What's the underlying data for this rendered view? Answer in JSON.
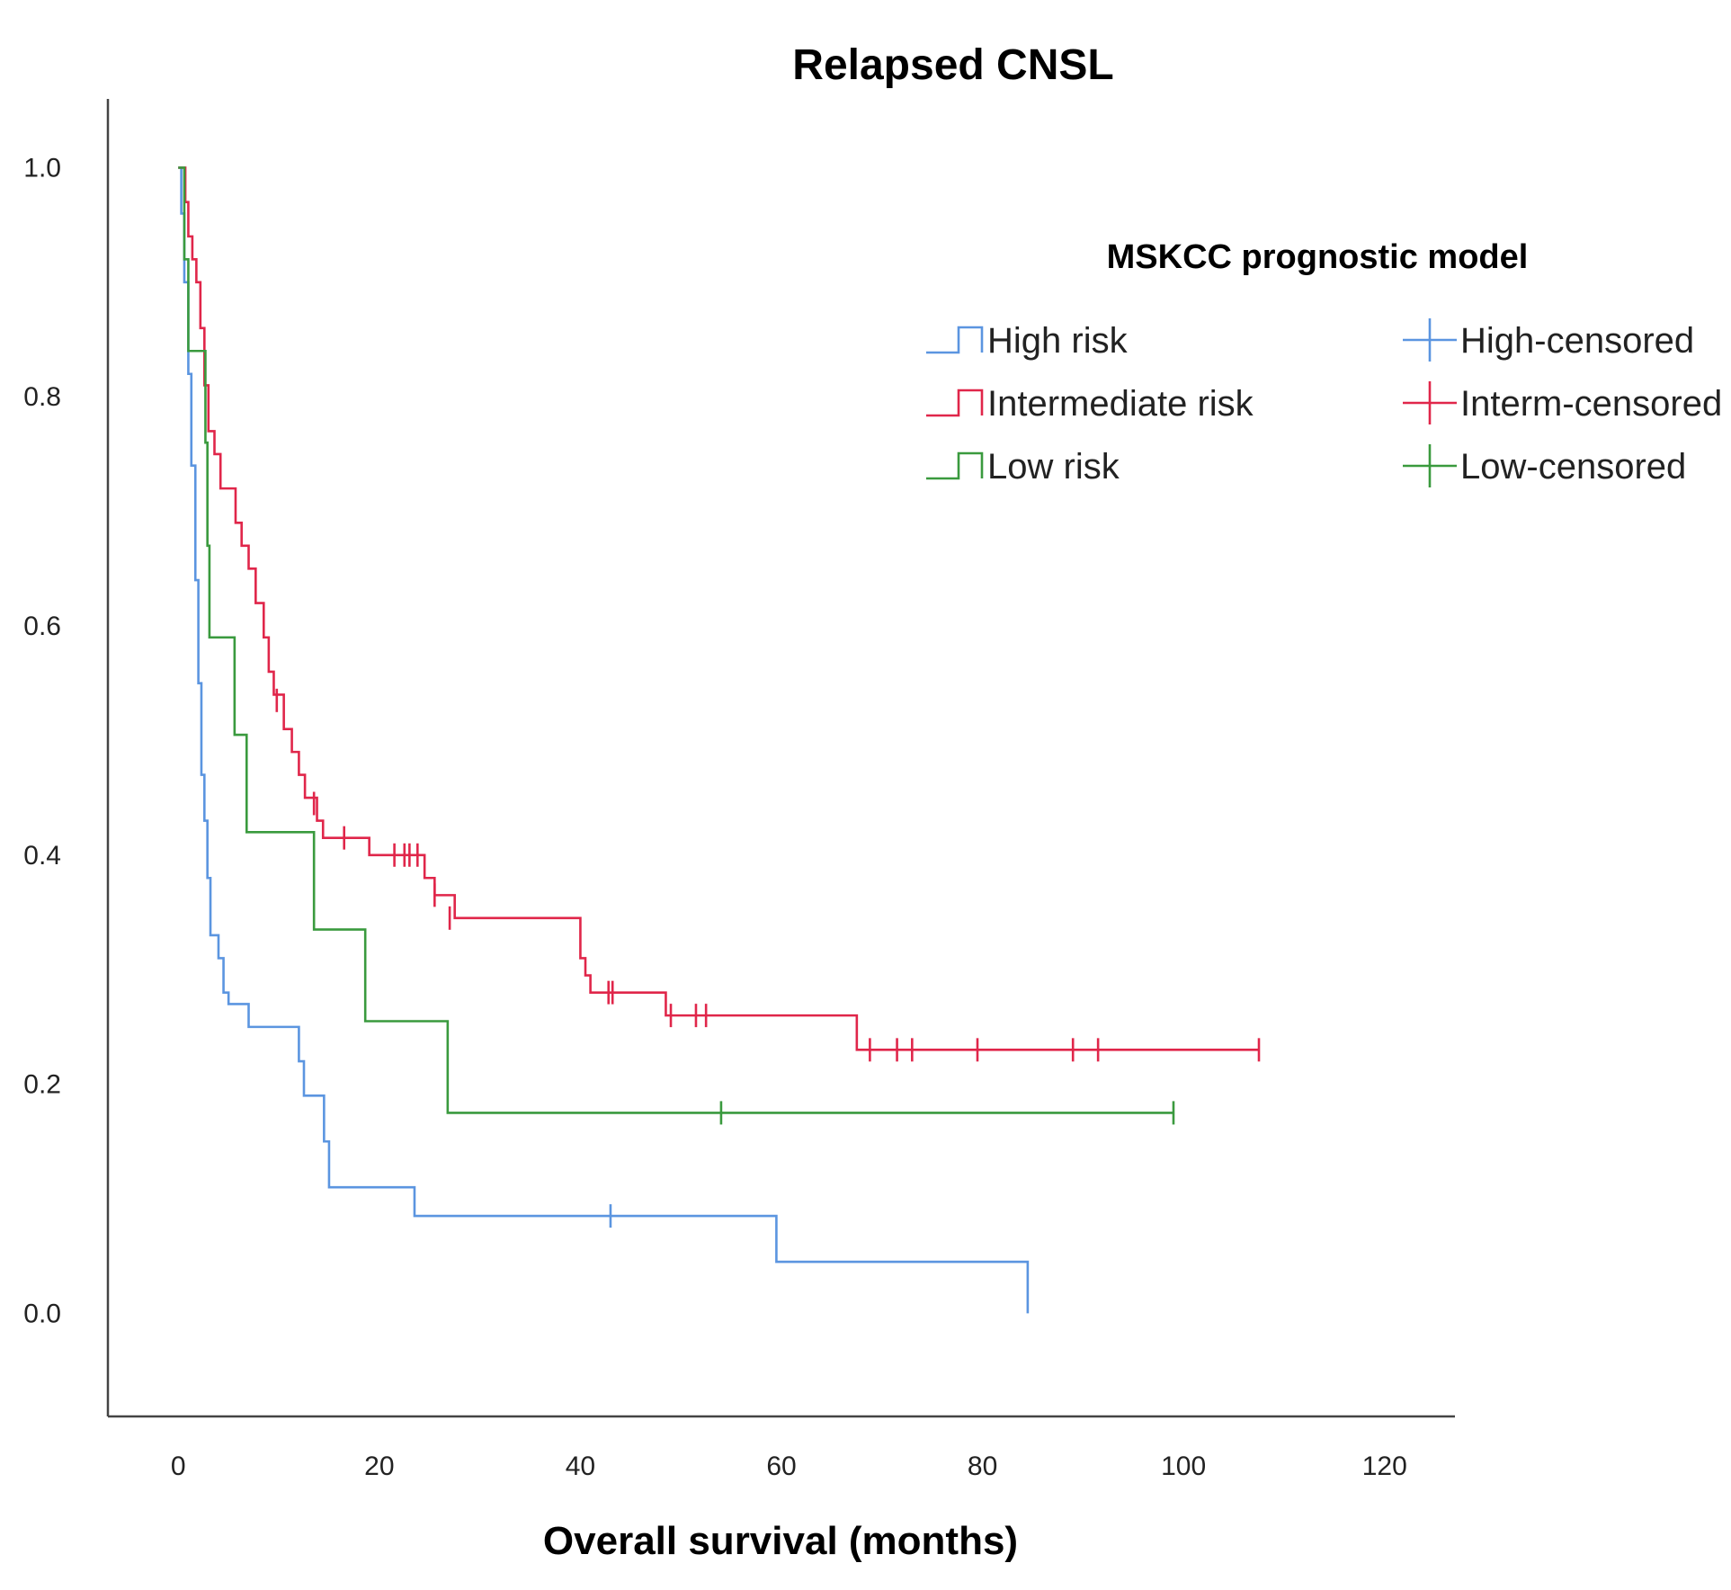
{
  "chart_data": {
    "type": "line",
    "subtype": "kaplan-meier",
    "title": "Relapsed CNSL",
    "xlabel": "Overall survival (months)",
    "ylabel": "",
    "xlim": [
      -7,
      127
    ],
    "ylim": [
      -0.09,
      1.06
    ],
    "xticks": [
      0,
      20,
      40,
      60,
      80,
      100,
      120
    ],
    "yticks": [
      0.0,
      0.2,
      0.4,
      0.6,
      0.8,
      1.0
    ],
    "legend": {
      "title": "MSKCC prognostic model",
      "placement": "top-right",
      "entries": [
        "High risk",
        "Intermediate risk",
        "Low risk",
        "High-censored",
        "Interm-censored",
        "Low-censored"
      ]
    },
    "series": [
      {
        "name": "High risk",
        "censored_name": "High-censored",
        "color": "#5b95e0",
        "steps": [
          [
            0,
            1.0
          ],
          [
            0.3,
            0.96
          ],
          [
            0.6,
            0.9
          ],
          [
            1.0,
            0.82
          ],
          [
            1.3,
            0.74
          ],
          [
            1.7,
            0.64
          ],
          [
            2.0,
            0.55
          ],
          [
            2.3,
            0.47
          ],
          [
            2.6,
            0.43
          ],
          [
            2.9,
            0.38
          ],
          [
            3.2,
            0.33
          ],
          [
            4.0,
            0.31
          ],
          [
            4.5,
            0.28
          ],
          [
            5.0,
            0.27
          ],
          [
            7.0,
            0.25
          ],
          [
            12.0,
            0.22
          ],
          [
            12.5,
            0.19
          ],
          [
            14.5,
            0.15
          ],
          [
            15.0,
            0.11
          ],
          [
            23.5,
            0.085
          ],
          [
            59.5,
            0.045
          ],
          [
            84.5,
            0.0
          ]
        ],
        "end": 84.5,
        "censored": [
          [
            43.0,
            0.085
          ]
        ]
      },
      {
        "name": "Intermediate risk",
        "censored_name": "Interm-censored",
        "color": "#e0264a",
        "steps": [
          [
            0,
            1.0
          ],
          [
            0.7,
            0.97
          ],
          [
            1.0,
            0.94
          ],
          [
            1.4,
            0.92
          ],
          [
            1.8,
            0.9
          ],
          [
            2.2,
            0.86
          ],
          [
            2.6,
            0.81
          ],
          [
            3.0,
            0.77
          ],
          [
            3.6,
            0.75
          ],
          [
            4.2,
            0.72
          ],
          [
            5.7,
            0.69
          ],
          [
            6.3,
            0.67
          ],
          [
            7.0,
            0.65
          ],
          [
            7.7,
            0.62
          ],
          [
            8.5,
            0.59
          ],
          [
            9.0,
            0.56
          ],
          [
            9.5,
            0.54
          ],
          [
            10.5,
            0.51
          ],
          [
            11.3,
            0.49
          ],
          [
            12.0,
            0.47
          ],
          [
            12.6,
            0.45
          ],
          [
            13.8,
            0.43
          ],
          [
            14.4,
            0.415
          ],
          [
            19.0,
            0.4
          ],
          [
            24.5,
            0.38
          ],
          [
            25.5,
            0.365
          ],
          [
            27.5,
            0.345
          ],
          [
            40.0,
            0.31
          ],
          [
            40.5,
            0.295
          ],
          [
            41.0,
            0.28
          ],
          [
            48.5,
            0.26
          ],
          [
            67.5,
            0.23
          ]
        ],
        "end": 107.5,
        "censored": [
          [
            9.8,
            0.535
          ],
          [
            13.5,
            0.445
          ],
          [
            16.5,
            0.415
          ],
          [
            21.5,
            0.4
          ],
          [
            22.5,
            0.4
          ],
          [
            23.0,
            0.4
          ],
          [
            23.8,
            0.4
          ],
          [
            25.5,
            0.365
          ],
          [
            27.0,
            0.345
          ],
          [
            42.8,
            0.28
          ],
          [
            43.2,
            0.28
          ],
          [
            49.0,
            0.26
          ],
          [
            51.5,
            0.26
          ],
          [
            52.5,
            0.26
          ],
          [
            68.8,
            0.23
          ],
          [
            71.5,
            0.23
          ],
          [
            73.0,
            0.23
          ],
          [
            79.5,
            0.23
          ],
          [
            89.0,
            0.23
          ],
          [
            91.5,
            0.23
          ],
          [
            107.5,
            0.23
          ]
        ]
      },
      {
        "name": "Low risk",
        "censored_name": "Low-censored",
        "color": "#3a9a3e",
        "steps": [
          [
            0,
            1.0
          ],
          [
            0.6,
            0.92
          ],
          [
            1.0,
            0.84
          ],
          [
            2.7,
            0.76
          ],
          [
            2.9,
            0.67
          ],
          [
            3.1,
            0.59
          ],
          [
            5.6,
            0.505
          ],
          [
            6.8,
            0.42
          ],
          [
            13.5,
            0.335
          ],
          [
            18.6,
            0.255
          ],
          [
            26.8,
            0.175
          ]
        ],
        "end": 99.0,
        "censored": [
          [
            54.0,
            0.175
          ],
          [
            99.0,
            0.175
          ]
        ]
      }
    ]
  }
}
